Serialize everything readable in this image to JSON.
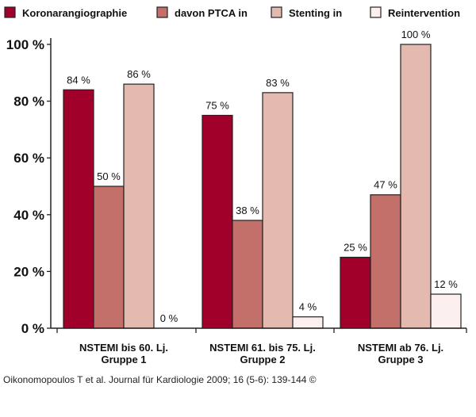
{
  "chart_data": {
    "type": "bar",
    "categories": [
      [
        "NSTEMI bis 60. Lj.",
        "Gruppe 1"
      ],
      [
        "NSTEMI 61. bis 75. Lj.",
        "Gruppe 2"
      ],
      [
        "NSTEMI ab 76. Lj.",
        "Gruppe 3"
      ]
    ],
    "series": [
      {
        "name": "Koronarangiographie",
        "color": "#a0002a",
        "values": [
          84,
          75,
          25
        ],
        "labels": [
          "84 %",
          "75 %",
          "25 %"
        ]
      },
      {
        "name": "davon PTCA in",
        "color": "#c4706a",
        "values": [
          50,
          38,
          47
        ],
        "labels": [
          "50 %",
          "38 %",
          "47 %"
        ]
      },
      {
        "name": "Stenting in",
        "color": "#e3b9b0",
        "values": [
          86,
          83,
          100
        ],
        "labels": [
          "86 %",
          "83 %",
          "100 %"
        ]
      },
      {
        "name": "Reintervention",
        "color": "#fbeff0",
        "values": [
          0,
          4,
          12
        ],
        "labels": [
          "0 %",
          "4 %",
          "12 %"
        ]
      }
    ],
    "yticks": [
      {
        "value": 0,
        "label": "0 %"
      },
      {
        "value": 20,
        "label": "20 %"
      },
      {
        "value": 40,
        "label": "40 %"
      },
      {
        "value": 60,
        "label": "60 %"
      },
      {
        "value": 80,
        "label": "80 %"
      },
      {
        "value": 100,
        "label": "100 %"
      }
    ],
    "ylim": [
      0,
      100
    ],
    "title": "",
    "xlabel": "",
    "ylabel": "",
    "legend_position": "top"
  },
  "caption": "Oikonomopoulos T et al. Journal für Kardiologie 2009; 16 (5-6): 139-144 ©"
}
